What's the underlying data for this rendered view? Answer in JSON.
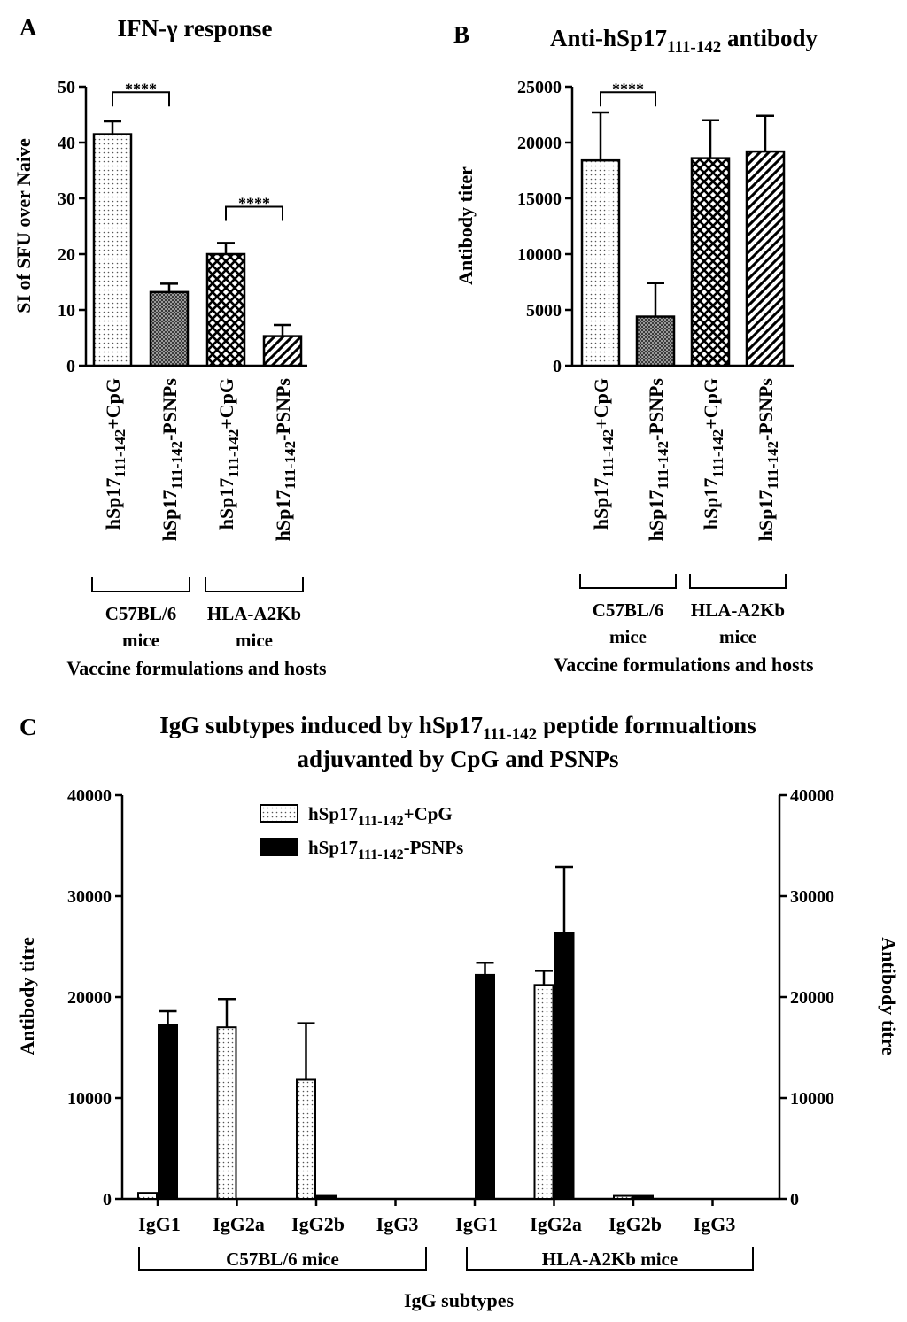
{
  "chart_data": [
    {
      "panel": "A",
      "type": "bar",
      "title": "IFN-γ response",
      "ylabel": "SI of SFU over Naive",
      "xlabel": "Vaccine formulations and hosts",
      "ylim": [
        0,
        50
      ],
      "yticks": [
        0,
        10,
        20,
        30,
        40,
        50
      ],
      "categories": [
        {
          "label": "hSp17",
          "sub": "111-142",
          "suffix": "+CpG",
          "value": 41.5,
          "error": 2.3,
          "pattern": "dots",
          "group": 0
        },
        {
          "label": "hSp17",
          "sub": "111-142",
          "suffix": "-PSNPs",
          "value": 13.2,
          "error": 1.5,
          "pattern": "dense",
          "group": 0
        },
        {
          "label": "hSp17",
          "sub": "111-142",
          "suffix": "+CpG",
          "value": 20.0,
          "error": 2.0,
          "pattern": "cross",
          "group": 1
        },
        {
          "label": "hSp17",
          "sub": "111-142",
          "suffix": "-PSNPs",
          "value": 5.3,
          "error": 2.0,
          "pattern": "diag",
          "group": 1
        }
      ],
      "groups": [
        {
          "line1": "C57BL/6",
          "line2": "mice"
        },
        {
          "line1": "HLA-A2Kb",
          "line2": "mice"
        }
      ],
      "significance": [
        {
          "from": 0,
          "to": 1,
          "label": "****",
          "y": 49
        },
        {
          "from": 2,
          "to": 3,
          "label": "****",
          "y": 28.5
        }
      ]
    },
    {
      "panel": "B",
      "type": "bar",
      "title": "Anti-hSp17",
      "title_sub": "111-142",
      "title_suffix": " antibody",
      "ylabel": "Antibody titer",
      "xlabel": "Vaccine formulations and hosts",
      "ylim": [
        0,
        25000
      ],
      "yticks": [
        0,
        5000,
        10000,
        15000,
        20000,
        25000
      ],
      "categories": [
        {
          "label": "hSp17",
          "sub": "111-142",
          "suffix": "+CpG",
          "value": 18400,
          "error": 4300,
          "pattern": "dots",
          "group": 0
        },
        {
          "label": "hSp17",
          "sub": "111-142",
          "suffix": "-PSNPs",
          "value": 4400,
          "error": 3000,
          "pattern": "dense",
          "group": 0
        },
        {
          "label": "hSp17",
          "sub": "111-142",
          "suffix": "+CpG",
          "value": 18600,
          "error": 3400,
          "pattern": "cross",
          "group": 1
        },
        {
          "label": "hSp17",
          "sub": "111-142",
          "suffix": "-PSNPs",
          "value": 19200,
          "error": 3200,
          "pattern": "diag",
          "group": 1
        }
      ],
      "groups": [
        {
          "line1": "C57BL/6",
          "line2": "mice"
        },
        {
          "line1": "HLA-A2Kb",
          "line2": "mice"
        }
      ],
      "significance": [
        {
          "from": 0,
          "to": 1,
          "label": "****",
          "y": 24500
        }
      ]
    },
    {
      "panel": "C",
      "type": "bar",
      "title_line1_pre": "IgG subtypes induced by hSp17",
      "title_line1_sub": "111-142",
      "title_line1_post": " peptide formualtions",
      "title_line2": "adjuvanted by CpG and PSNPs",
      "ylabel_left": "Antibody titre",
      "ylabel_right": "Antibody titre",
      "xlabel": "IgG subtypes",
      "ylim": [
        0,
        40000
      ],
      "yticks": [
        0,
        10000,
        20000,
        30000,
        40000
      ],
      "categories": [
        "IgG1",
        "IgG2a",
        "IgG2b",
        "IgG3",
        "IgG1",
        "IgG2a",
        "IgG2b",
        "IgG3"
      ],
      "groups": [
        "C57BL/6 mice",
        "HLA-A2Kb mice"
      ],
      "series": [
        {
          "name_pre": "hSp17",
          "name_sub": "111-142",
          "name_post": "+CpG",
          "pattern": "dots",
          "values": [
            600,
            17000,
            11800,
            0,
            0,
            21200,
            300,
            0
          ],
          "errors": [
            0,
            2800,
            5600,
            0,
            0,
            1400,
            0,
            0
          ]
        },
        {
          "name_pre": "hSp17",
          "name_sub": "111-142",
          "name_post": "-PSNPs",
          "pattern": "solid",
          "values": [
            17200,
            0,
            300,
            0,
            22200,
            26400,
            300,
            0
          ],
          "errors": [
            1400,
            0,
            0,
            0,
            1200,
            6500,
            0,
            0
          ]
        }
      ]
    }
  ],
  "labels": {
    "panel_a": "A",
    "panel_b": "B",
    "panel_c": "C"
  }
}
